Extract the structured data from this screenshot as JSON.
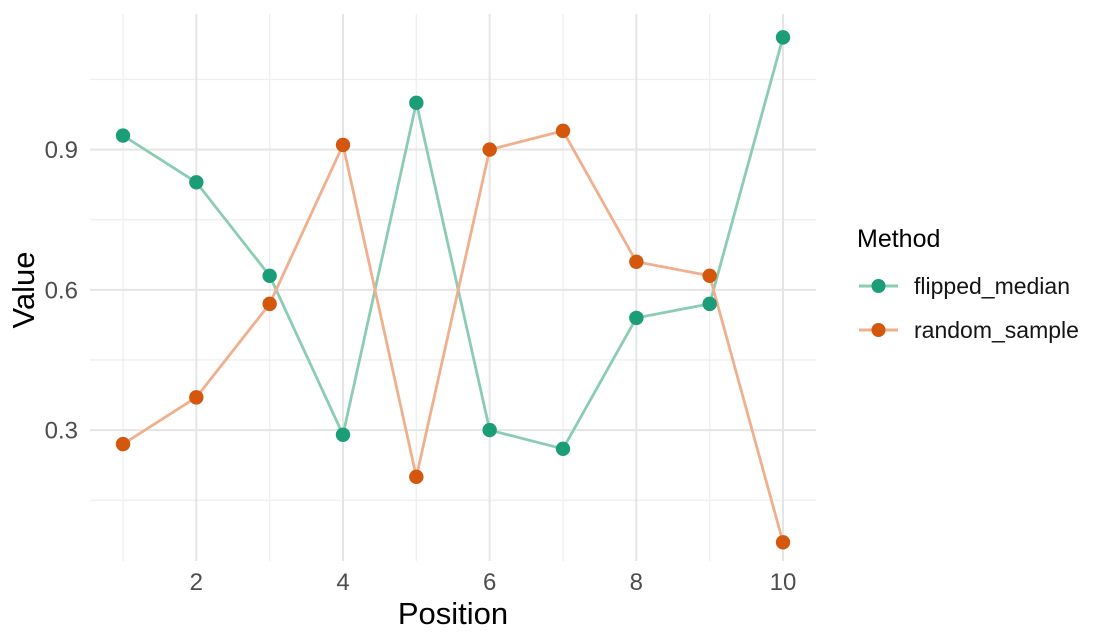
{
  "chart_data": {
    "type": "line",
    "title": "",
    "xlabel": "Position",
    "ylabel": "Value",
    "x": [
      1,
      2,
      3,
      4,
      5,
      6,
      7,
      8,
      9,
      10
    ],
    "series": [
      {
        "name": "flipped_median",
        "point_color": "#1b9e77",
        "line_color": "#8acdb2",
        "values": [
          0.93,
          0.83,
          0.63,
          0.29,
          1.0,
          0.3,
          0.26,
          0.54,
          0.57,
          1.14
        ]
      },
      {
        "name": "random_sample",
        "point_color": "#d4570e",
        "line_color": "#f0af8d",
        "values": [
          0.27,
          0.37,
          0.57,
          0.91,
          0.2,
          0.9,
          0.94,
          0.66,
          0.63,
          0.06
        ]
      }
    ],
    "x_ticks": [
      2,
      4,
      6,
      8,
      10
    ],
    "x_tick_labels": [
      "2",
      "4",
      "6",
      "8",
      "10"
    ],
    "x_minor_gridlines": [
      1,
      3,
      5,
      7,
      9
    ],
    "y_ticks": [
      0.3,
      0.6,
      0.9
    ],
    "y_tick_labels": [
      "0.3",
      "0.6",
      "0.9"
    ],
    "y_minor_gridlines": [
      0.15,
      0.45,
      0.75,
      1.05
    ],
    "xlim": [
      0.55,
      10.45
    ],
    "ylim": [
      0.02,
      1.19
    ],
    "grid": true,
    "legend": {
      "title": "Method",
      "position": "right",
      "items": [
        "flipped_median",
        "random_sample"
      ]
    },
    "colors": {
      "background": "#ffffff",
      "grid_major": "#e5e5e5",
      "grid_minor": "#efefef",
      "tick_label": "#4d4d4d",
      "axis_title": "#000000"
    }
  }
}
